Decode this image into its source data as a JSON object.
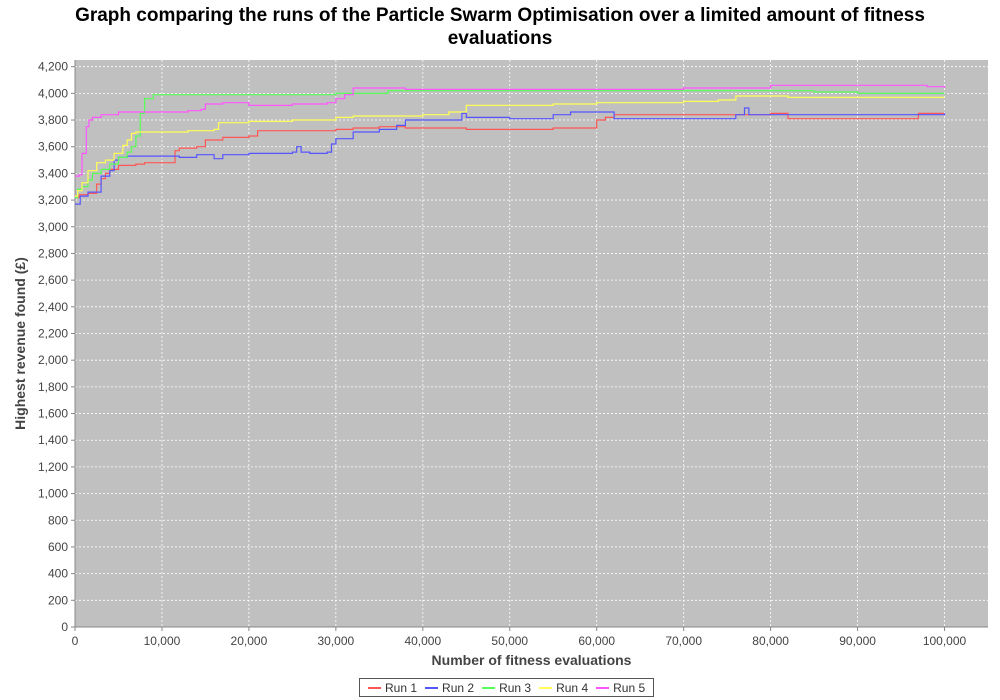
{
  "chart_data": {
    "type": "line",
    "title_lines": [
      "Graph comparing the runs of the Particle Swarm Optimisation over a limited amount of fitness",
      "evaluations"
    ],
    "xlabel": "Number of fitness evaluations",
    "ylabel": "Highest revenue found (£)",
    "xlim": [
      0,
      105000
    ],
    "ylim": [
      0,
      4250
    ],
    "x_ticks": [
      0,
      10000,
      20000,
      30000,
      40000,
      50000,
      60000,
      70000,
      80000,
      90000,
      100000
    ],
    "x_tick_labels": [
      "0",
      "10,000",
      "20,000",
      "30,000",
      "40,000",
      "50,000",
      "60,000",
      "70,000",
      "80,000",
      "90,000",
      "100,000"
    ],
    "y_ticks": [
      0,
      200,
      400,
      600,
      800,
      1000,
      1200,
      1400,
      1600,
      1800,
      2000,
      2200,
      2400,
      2600,
      2800,
      3000,
      3200,
      3400,
      3600,
      3800,
      4000,
      4200
    ],
    "y_tick_labels": [
      "0",
      "200",
      "400",
      "600",
      "800",
      "1,000",
      "1,200",
      "1,400",
      "1,600",
      "1,800",
      "2,000",
      "2,200",
      "2,400",
      "2,600",
      "2,800",
      "3,000",
      "3,200",
      "3,400",
      "3,600",
      "3,800",
      "4,000",
      "4,200"
    ],
    "grid": true,
    "legend_position": "bottom",
    "plot_background": "#c0c0c0",
    "series": [
      {
        "name": "Run 1",
        "color": "#ff5555",
        "x": [
          0,
          500,
          1500,
          2500,
          3000,
          3500,
          4000,
          5000,
          7000,
          8000,
          9000,
          11500,
          12000,
          14000,
          15000,
          16500,
          17000,
          20000,
          21000,
          30000,
          32000,
          35000,
          38000,
          40000,
          45000,
          50000,
          55000,
          60000,
          61000,
          62000,
          70000,
          78000,
          80000,
          82000,
          90000,
          96000,
          97000,
          100000
        ],
        "y": [
          3220,
          3240,
          3250,
          3320,
          3360,
          3400,
          3430,
          3460,
          3470,
          3480,
          3480,
          3570,
          3590,
          3600,
          3650,
          3650,
          3670,
          3680,
          3720,
          3730,
          3740,
          3750,
          3740,
          3740,
          3730,
          3730,
          3740,
          3800,
          3820,
          3840,
          3840,
          3840,
          3850,
          3810,
          3810,
          3810,
          3850,
          3850
        ]
      },
      {
        "name": "Run 2",
        "color": "#5555ff",
        "x": [
          0,
          300,
          600,
          1500,
          3000,
          4000,
          4500,
          5000,
          6000,
          10000,
          12000,
          14000,
          16000,
          17000,
          20000,
          22000,
          25000,
          25500,
          26000,
          27000,
          29000,
          29500,
          30000,
          32000,
          35000,
          37000,
          38000,
          40000,
          44000,
          44500,
          45000,
          50000,
          55000,
          57000,
          62000,
          66000,
          70000,
          76000,
          77000,
          77500,
          80000,
          90000,
          100000
        ],
        "y": [
          3170,
          3170,
          3230,
          3260,
          3380,
          3420,
          3500,
          3520,
          3530,
          3530,
          3520,
          3540,
          3510,
          3540,
          3550,
          3550,
          3560,
          3600,
          3560,
          3550,
          3560,
          3620,
          3660,
          3710,
          3730,
          3760,
          3800,
          3800,
          3800,
          3850,
          3820,
          3810,
          3840,
          3860,
          3810,
          3810,
          3810,
          3840,
          3890,
          3840,
          3840,
          3840,
          3850
        ]
      },
      {
        "name": "Run 3",
        "color": "#55ff55",
        "x": [
          0,
          300,
          800,
          1500,
          2000,
          3000,
          4000,
          5000,
          5500,
          6000,
          6500,
          7000,
          7500,
          8000,
          9000,
          12000,
          15000,
          20000,
          25000,
          30000,
          31000,
          33000,
          36000,
          38000,
          40000,
          50000,
          60000,
          70000,
          80000,
          85000,
          90000,
          95000,
          100000
        ],
        "y": [
          3220,
          3280,
          3300,
          3350,
          3400,
          3430,
          3470,
          3520,
          3520,
          3560,
          3600,
          3680,
          3850,
          3960,
          3990,
          3990,
          3990,
          3990,
          3990,
          4000,
          4000,
          4000,
          4020,
          4020,
          4020,
          4020,
          4020,
          4020,
          4020,
          4010,
          4000,
          4000,
          4000
        ]
      },
      {
        "name": "Run 4",
        "color": "#ffff55",
        "x": [
          0,
          300,
          800,
          1500,
          2500,
          3500,
          4500,
          5500,
          6000,
          6500,
          7000,
          10000,
          13000,
          14000,
          16000,
          16500,
          20000,
          25000,
          29000,
          30000,
          32000,
          35000,
          40000,
          43000,
          45000,
          50000,
          55000,
          60000,
          65000,
          70000,
          74000,
          76000,
          80000,
          82000,
          90000,
          95000,
          100000
        ],
        "y": [
          3230,
          3270,
          3330,
          3420,
          3480,
          3500,
          3550,
          3610,
          3650,
          3700,
          3710,
          3710,
          3720,
          3720,
          3730,
          3780,
          3790,
          3800,
          3800,
          3820,
          3830,
          3830,
          3840,
          3860,
          3910,
          3910,
          3920,
          3930,
          3930,
          3940,
          3950,
          3980,
          3980,
          3970,
          3970,
          3970,
          3970
        ]
      },
      {
        "name": "Run 5",
        "color": "#ff55ff",
        "x": [
          0,
          500,
          800,
          1300,
          1600,
          2000,
          3000,
          5000,
          7000,
          10000,
          12000,
          13000,
          14500,
          15000,
          17000,
          20000,
          25000,
          29000,
          30000,
          31000,
          32000,
          35000,
          38000,
          40000,
          50000,
          60000,
          70000,
          72000,
          78000,
          80000,
          85000,
          90000,
          95000,
          98000,
          100000
        ],
        "y": [
          3380,
          3390,
          3550,
          3750,
          3800,
          3820,
          3840,
          3860,
          3860,
          3860,
          3860,
          3870,
          3880,
          3920,
          3930,
          3910,
          3920,
          3930,
          3960,
          3990,
          4040,
          4040,
          4030,
          4030,
          4030,
          4030,
          4040,
          4040,
          4040,
          4060,
          4060,
          4060,
          4060,
          4050,
          4040
        ]
      }
    ]
  }
}
